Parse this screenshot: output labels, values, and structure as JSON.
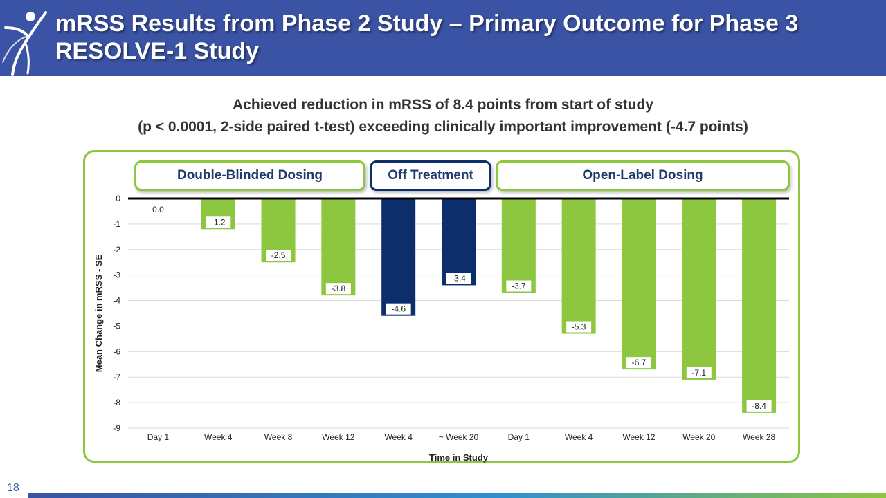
{
  "slide": {
    "title": "mRSS Results from Phase 2 Study – Primary Outcome for Phase 3 RESOLVE-1 Study",
    "subtitle_line1": "Achieved reduction in mRSS of 8.4 points from start of study",
    "subtitle_line2": "(p < 0.0001, 2-side paired t-test) exceeding clinically important improvement (-4.7 points)",
    "page_number": "18"
  },
  "phases": {
    "double_blinded": "Double-Blinded Dosing",
    "off_treatment": "Off Treatment",
    "open_label": "Open-Label Dosing"
  },
  "colors": {
    "header": "#3a53a4",
    "green": "#8dc63f",
    "navy": "#0c2f6b"
  },
  "chart_data": {
    "type": "bar",
    "categories": [
      "Day 1",
      "Week 4",
      "Week 8",
      "Week 12",
      "Week 4",
      "~ Week 20",
      "Day 1",
      "Week 4",
      "Week 12",
      "Week 20",
      "Week 28"
    ],
    "values": [
      0.0,
      -1.2,
      -2.5,
      -3.8,
      -4.6,
      -3.4,
      -3.7,
      -5.3,
      -6.7,
      -7.1,
      -8.4
    ],
    "data_labels": [
      "0.0",
      "-1.2",
      "-2.5",
      "-3.8",
      "-4.6",
      "-3.4",
      "-3.7",
      "-5.3",
      "-6.7",
      "-7.1",
      "-8.4"
    ],
    "bar_colors": [
      "#8dc63f",
      "#8dc63f",
      "#8dc63f",
      "#8dc63f",
      "#0c2f6b",
      "#0c2f6b",
      "#8dc63f",
      "#8dc63f",
      "#8dc63f",
      "#8dc63f",
      "#8dc63f"
    ],
    "xlabel": "Time in Study",
    "ylabel": "Mean Change in mRSS - SE",
    "ylim": [
      -9,
      0
    ],
    "yticks": [
      0,
      -1,
      -2,
      -3,
      -4,
      -5,
      -6,
      -7,
      -8,
      -9
    ],
    "grid": true,
    "legend": "none"
  }
}
